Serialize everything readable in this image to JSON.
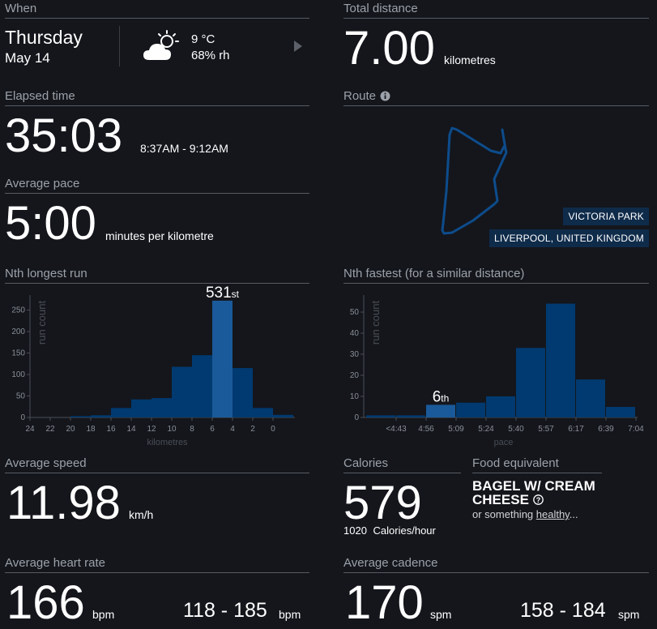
{
  "when": {
    "title": "When",
    "day": "Thursday",
    "date": "May 14",
    "weather_icon": "partly-cloudy-icon",
    "temperature": "9 °C",
    "humidity": "68% rh",
    "next_icon": "play-arrow-icon"
  },
  "distance": {
    "title": "Total distance",
    "value": "7.00",
    "unit": "kilometres"
  },
  "elapsed": {
    "title": "Elapsed time",
    "value": "35:03",
    "range": "8:37AM - 9:12AM"
  },
  "pace": {
    "title": "Average pace",
    "value": "5:00",
    "unit": "minutes per kilometre"
  },
  "route": {
    "title": "Route",
    "info_icon": "info-icon",
    "park": "VICTORIA PARK",
    "location": "LIVERPOOL, UNITED KINGDOM"
  },
  "longest": {
    "title": "Nth longest run",
    "rank": "531",
    "suffix": "st"
  },
  "fastest": {
    "title": "Nth fastest (for a similar distance)",
    "rank": "6",
    "suffix": "th"
  },
  "speed": {
    "title": "Average speed",
    "value": "11.98",
    "unit": "km/h"
  },
  "calories": {
    "title": "Calories",
    "value": "579",
    "rate": "1020",
    "rate_unit": "Calories/hour"
  },
  "food": {
    "title": "Food equivalent",
    "name": "BAGEL W/ CREAM CHEESE",
    "help_icon": "help-circle-icon",
    "alt_prefix": "or something ",
    "alt_link": "healthy",
    "alt_suffix": "..."
  },
  "heart": {
    "title": "Average heart rate",
    "value": "166",
    "unit": "bpm",
    "range": "118 - 185",
    "range_unit": "bpm"
  },
  "cadence": {
    "title": "Average cadence",
    "value": "170",
    "unit": "spm",
    "range": "158 - 184",
    "range_unit": "spm"
  },
  "colors": {
    "bar": "#013a70",
    "highlight": "#1a5a9a",
    "route": "#0d4c8c",
    "text_muted": "#9ca1a9"
  },
  "chart_data": [
    {
      "type": "bar",
      "ylabel": "run count",
      "xlabel": "kilometres",
      "ylim": [
        0,
        270
      ],
      "yticks": [
        0,
        50,
        100,
        150,
        200,
        250
      ],
      "xtick_labels": [
        "24",
        "22",
        "20",
        "18",
        "16",
        "14",
        "12",
        "10",
        "8",
        "6",
        "4",
        "2",
        "0"
      ],
      "values": [
        0,
        0,
        3,
        5,
        22,
        42,
        45,
        118,
        145,
        272,
        115,
        22,
        6
      ],
      "highlight_index": 9,
      "grid": false
    },
    {
      "type": "bar",
      "ylabel": "run count",
      "xlabel": "pace",
      "ylim": [
        0,
        55
      ],
      "yticks": [
        0,
        10,
        20,
        30,
        40,
        50
      ],
      "xtick_labels": [
        "<4:43",
        "4:56",
        "5:09",
        "5:24",
        "5:40",
        "5:57",
        "6:17",
        "6:39",
        "7:04"
      ],
      "values": [
        1,
        1,
        6,
        7,
        10,
        33,
        54,
        18,
        5
      ],
      "highlight_index": 2,
      "grid": false
    }
  ]
}
